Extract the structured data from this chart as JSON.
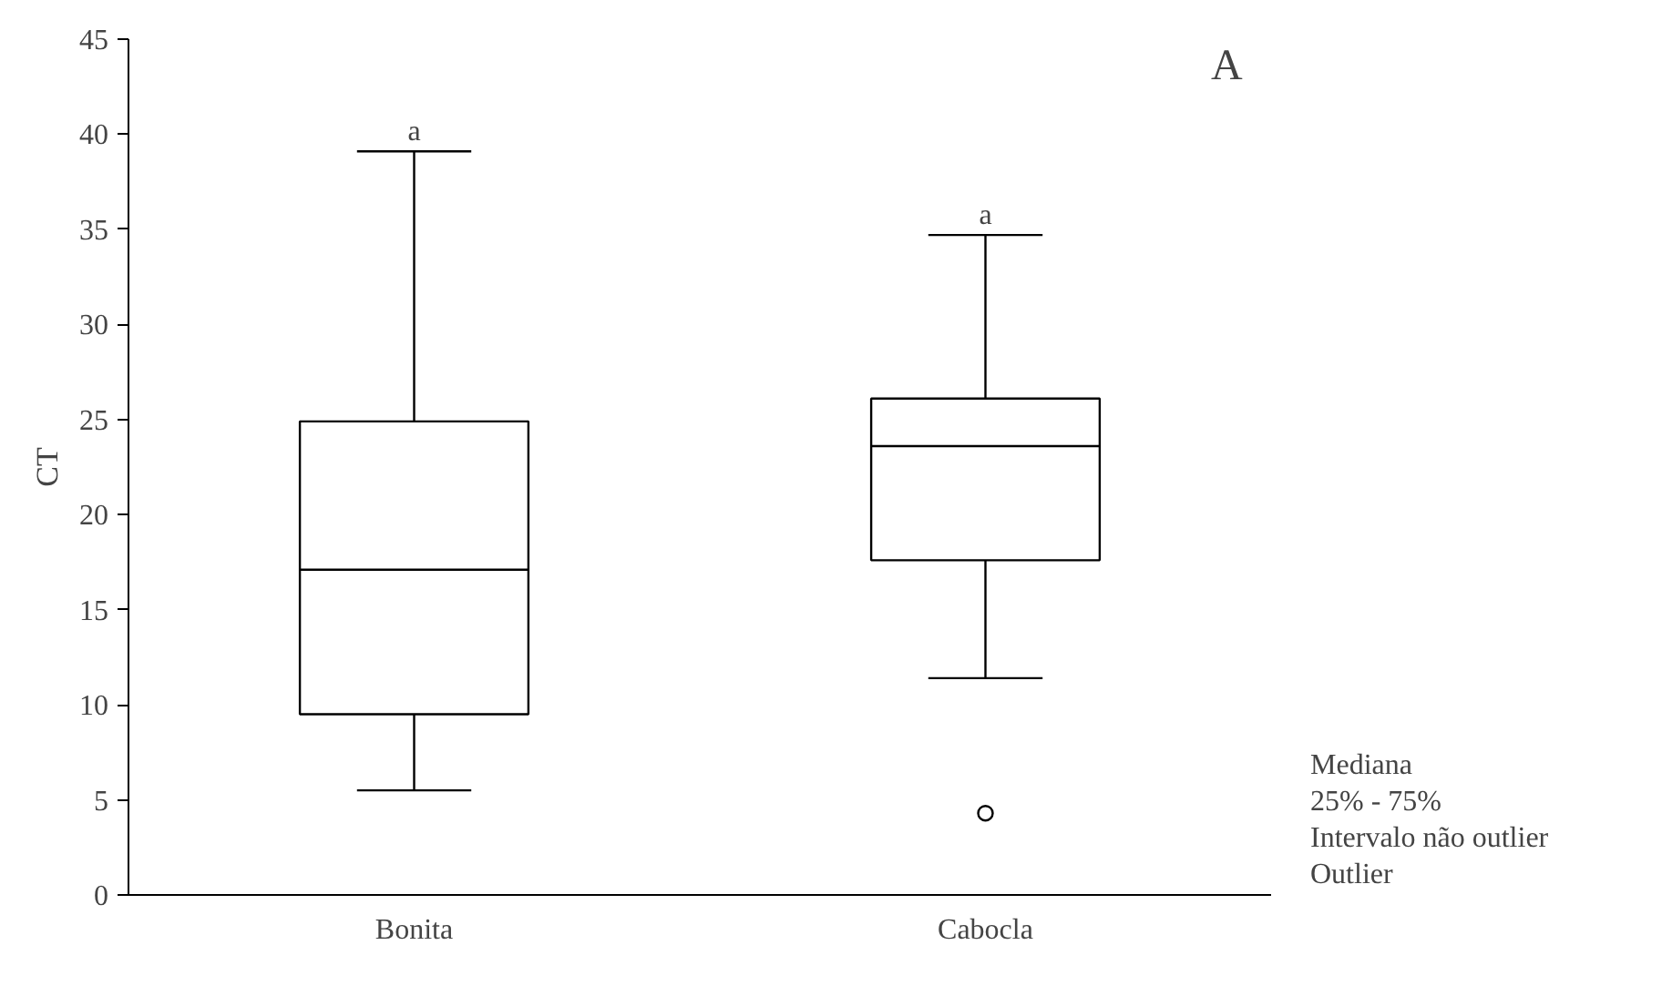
{
  "chart_data": {
    "type": "box",
    "ylabel": "CT",
    "categories": [
      "Bonita",
      "Cabocla"
    ],
    "boxes": [
      {
        "low": 5.5,
        "q1": 9.5,
        "median": 17.1,
        "q3": 24.9,
        "high": 39.1
      },
      {
        "low": 11.4,
        "q1": 17.6,
        "median": 23.6,
        "q3": 26.1,
        "high": 34.7,
        "outliers": [
          4.3
        ]
      }
    ],
    "ylim": [
      0,
      45
    ],
    "yticks": [
      0,
      5,
      10,
      15,
      20,
      25,
      30,
      35,
      40,
      45
    ],
    "grid": false,
    "annotations": [
      {
        "text": "a",
        "x": "Bonita",
        "y": 39.1
      },
      {
        "text": "a",
        "x": "Cabocla",
        "y": 34.7
      },
      "A",
      "Mediana",
      "25% - 75%",
      "Intervalo não outlier",
      "Outlier"
    ]
  }
}
